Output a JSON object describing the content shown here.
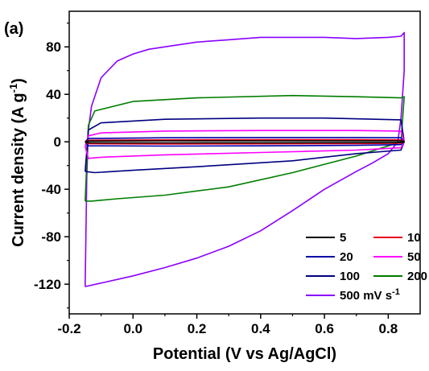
{
  "panel_label": "(a)",
  "chart_data": {
    "type": "line",
    "title": "",
    "xlabel": "Potential (V vs Ag/AgCl)",
    "ylabel_main": "Current density (A g",
    "ylabel_sup": "-1",
    "ylabel_end": ")",
    "xlim": [
      -0.2,
      0.9
    ],
    "ylim": [
      -145,
      110
    ],
    "x_ticks": [
      -0.2,
      0.0,
      0.2,
      0.4,
      0.6,
      0.8
    ],
    "x_tick_labels": [
      "-0.2",
      "0.0",
      "0.2",
      "0.4",
      "0.6",
      "0.8"
    ],
    "y_ticks": [
      -120,
      -80,
      -40,
      0,
      40,
      80
    ],
    "y_tick_labels": [
      "-120",
      "-80",
      "-40",
      "0",
      "40",
      "80"
    ],
    "grid": false,
    "legend_placement": "bottom-right",
    "legend_unit": "mV s",
    "legend_unit_sup": "-1",
    "series": [
      {
        "name": "5",
        "color": "#000000",
        "x": [
          -0.15,
          -0.14,
          0.1,
          0.4,
          0.7,
          0.84,
          0.85,
          0.84,
          0.7,
          0.4,
          0.1,
          -0.14,
          -0.15
        ],
        "y": [
          0.0,
          0.6,
          0.8,
          0.9,
          0.9,
          0.8,
          0.0,
          -0.6,
          -0.7,
          -0.8,
          -0.9,
          -0.8,
          0.0
        ]
      },
      {
        "name": "10",
        "color": "#e8001c",
        "x": [
          -0.15,
          -0.14,
          0.1,
          0.4,
          0.7,
          0.84,
          0.85,
          0.84,
          0.7,
          0.4,
          0.1,
          -0.14,
          -0.15
        ],
        "y": [
          0.0,
          1.3,
          1.6,
          1.8,
          1.8,
          1.6,
          0.0,
          -1.2,
          -1.5,
          -1.7,
          -1.8,
          -1.6,
          0.0
        ]
      },
      {
        "name": "20",
        "color": "#0000a8",
        "x": [
          -0.15,
          -0.14,
          0.1,
          0.4,
          0.7,
          0.84,
          0.85,
          0.84,
          0.7,
          0.4,
          0.1,
          -0.14,
          -0.15
        ],
        "y": [
          0.0,
          2.8,
          3.4,
          3.6,
          3.6,
          3.4,
          0.0,
          -2.4,
          -3.0,
          -3.4,
          -3.6,
          -3.4,
          0.0
        ]
      },
      {
        "name": "50",
        "color": "#ff00ff",
        "x": [
          -0.15,
          -0.14,
          -0.1,
          0.1,
          0.4,
          0.7,
          0.84,
          0.85,
          0.84,
          0.7,
          0.4,
          0.1,
          -0.1,
          -0.14,
          -0.15
        ],
        "y": [
          -4.0,
          5.0,
          7.5,
          9.0,
          9.5,
          9.5,
          9.0,
          0.0,
          -5.0,
          -7.0,
          -9.0,
          -11.0,
          -13.0,
          -14.0,
          -4.0
        ]
      },
      {
        "name": "100",
        "color": "#000080",
        "x": [
          -0.15,
          -0.14,
          -0.1,
          0.1,
          0.4,
          0.6,
          0.84,
          0.85,
          0.84,
          0.7,
          0.5,
          0.2,
          0.0,
          -0.12,
          -0.15
        ],
        "y": [
          -25.0,
          10.0,
          16.0,
          19.0,
          20.0,
          20.0,
          18.5,
          0.0,
          -7.0,
          -10.0,
          -16.0,
          -21.0,
          -24.0,
          -26.0,
          -25.0
        ]
      },
      {
        "name": "200",
        "color": "#007d00",
        "x": [
          -0.15,
          -0.14,
          -0.12,
          0.0,
          0.2,
          0.5,
          0.7,
          0.84,
          0.85,
          0.84,
          0.7,
          0.5,
          0.3,
          0.1,
          -0.05,
          -0.13,
          -0.15
        ],
        "y": [
          -50.0,
          14.0,
          26.0,
          34.0,
          37.0,
          39.0,
          38.0,
          37.0,
          38.0,
          0.0,
          -12.0,
          -26.0,
          -38.0,
          -45.0,
          -48.0,
          -50.0,
          -50.0
        ]
      },
      {
        "name": "500 mV s-1",
        "color": "#8a00ff",
        "x": [
          -0.15,
          -0.145,
          -0.14,
          -0.13,
          -0.1,
          -0.05,
          0.0,
          0.05,
          0.1,
          0.2,
          0.3,
          0.4,
          0.5,
          0.6,
          0.7,
          0.8,
          0.84,
          0.85,
          0.85,
          0.84,
          0.83,
          0.8,
          0.75,
          0.7,
          0.6,
          0.5,
          0.4,
          0.3,
          0.2,
          0.1,
          0.0,
          -0.1,
          -0.15
        ],
        "y": [
          -122.0,
          -30.0,
          10.0,
          30.0,
          54.0,
          68.0,
          74.0,
          78.0,
          80.0,
          84.0,
          86.0,
          88.0,
          88.0,
          88.0,
          87.0,
          88.0,
          89.0,
          92.0,
          60.0,
          20.0,
          0.0,
          -10.0,
          -18.0,
          -25.0,
          -40.0,
          -58.0,
          -75.0,
          -88.0,
          -98.0,
          -106.0,
          -113.0,
          -119.0,
          -122.0
        ]
      }
    ]
  }
}
